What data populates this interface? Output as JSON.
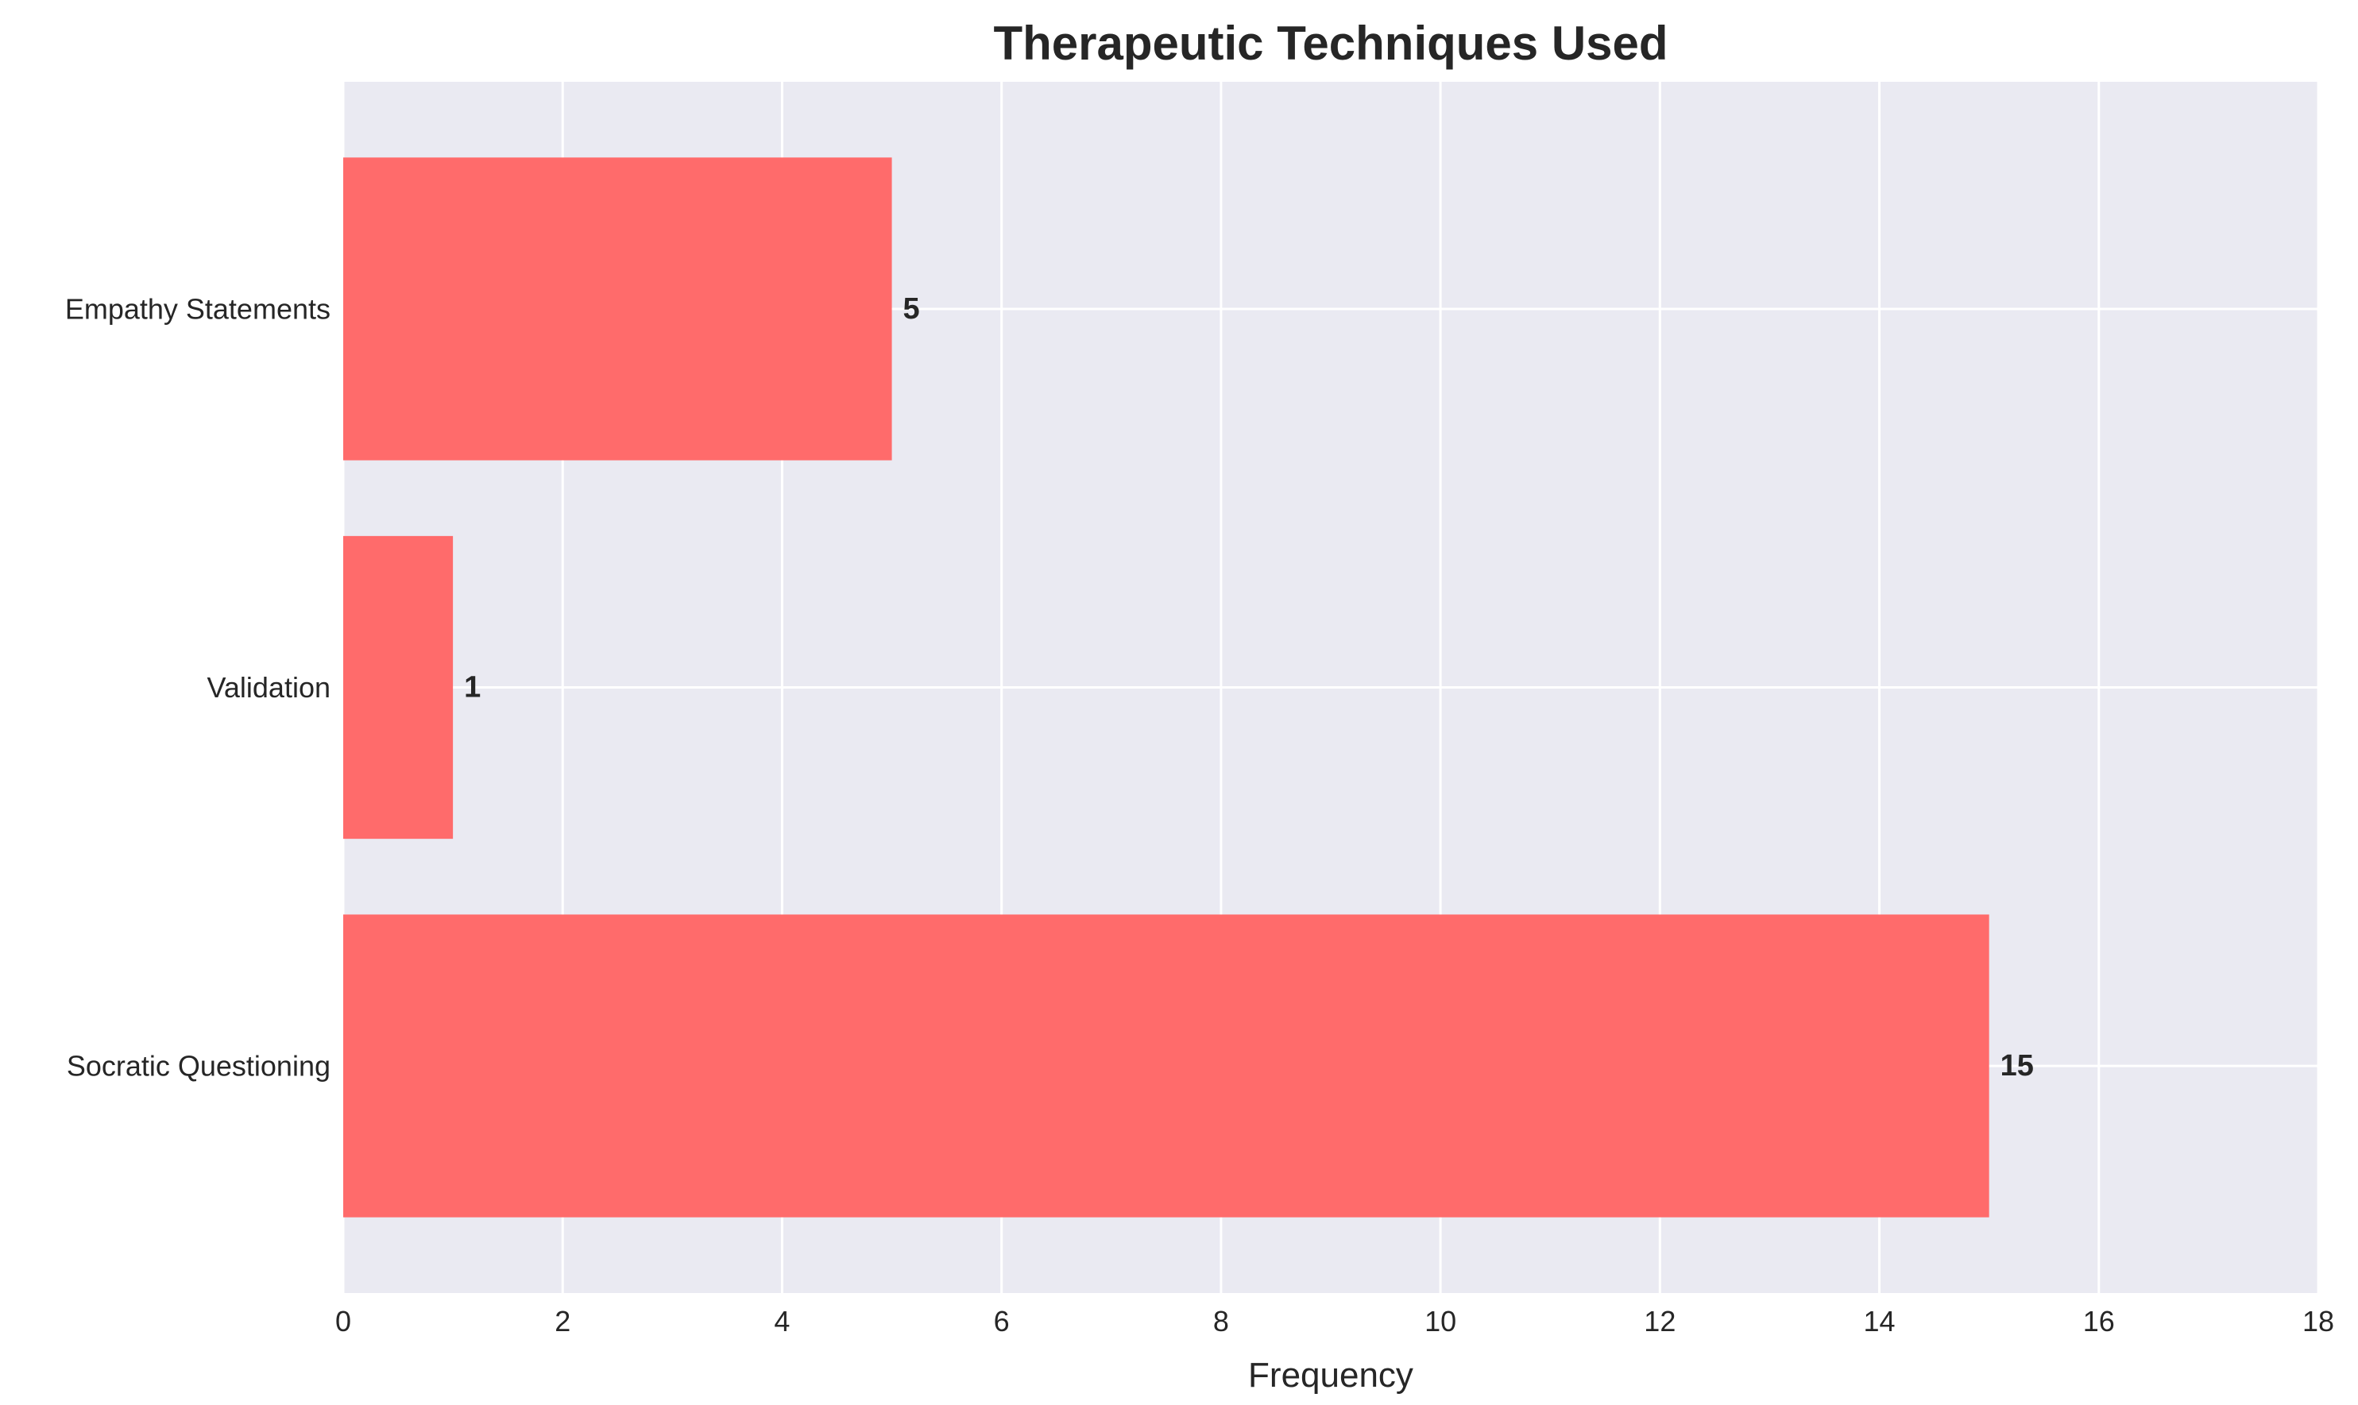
{
  "chart_data": {
    "type": "bar",
    "orientation": "horizontal",
    "title": "Therapeutic Techniques Used",
    "xlabel": "Frequency",
    "ylabel": "",
    "categories": [
      "Socratic Questioning",
      "Validation",
      "Empathy Statements"
    ],
    "values": [
      15,
      1,
      5
    ],
    "xlim": [
      0,
      18
    ],
    "xticks": [
      0,
      2,
      4,
      6,
      8,
      10,
      12,
      14,
      16,
      18
    ],
    "grid": true,
    "bar_color": "#ff6b6b",
    "background_color": "#eaeaf2",
    "grid_color": "#ffffff",
    "show_data_labels": true
  }
}
